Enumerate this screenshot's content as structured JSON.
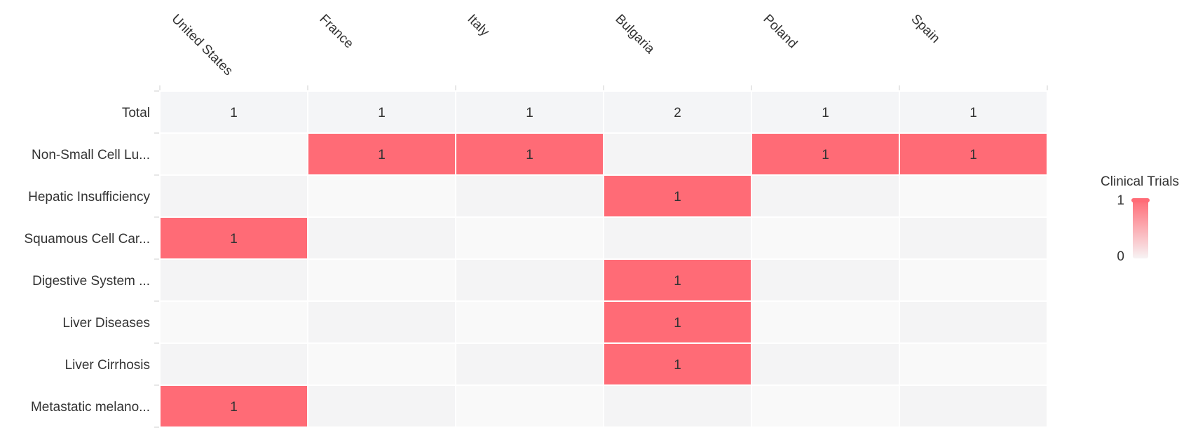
{
  "chart_data": {
    "type": "heatmap",
    "columns": [
      "United States",
      "France",
      "Italy",
      "Bulgaria",
      "Poland",
      "Spain"
    ],
    "total_row": {
      "label": "Total",
      "values": [
        1,
        1,
        1,
        2,
        1,
        1
      ]
    },
    "rows": [
      {
        "label": "Non-Small Cell Lu...",
        "values": [
          null,
          1,
          1,
          null,
          1,
          1
        ]
      },
      {
        "label": "Hepatic Insufficiency",
        "values": [
          null,
          null,
          null,
          1,
          null,
          null
        ]
      },
      {
        "label": "Squamous Cell Car...",
        "values": [
          1,
          null,
          null,
          null,
          null,
          null
        ]
      },
      {
        "label": "Digestive System ...",
        "values": [
          null,
          null,
          null,
          1,
          null,
          null
        ]
      },
      {
        "label": "Liver Diseases",
        "values": [
          null,
          null,
          null,
          1,
          null,
          null
        ]
      },
      {
        "label": "Liver Cirrhosis",
        "values": [
          null,
          null,
          null,
          1,
          null,
          null
        ]
      },
      {
        "label": "Metastatic melano...",
        "values": [
          1,
          null,
          null,
          null,
          null,
          null
        ]
      }
    ],
    "legend": {
      "title": "Clinical Trials",
      "min": 0,
      "max": 1,
      "min_label": "0",
      "max_label": "1",
      "placement": "right"
    },
    "colors": {
      "high": "#ff6b76",
      "total_bg": "#f4f5f7",
      "empty_a": "#f9f9f9",
      "empty_b": "#f4f4f5"
    }
  }
}
